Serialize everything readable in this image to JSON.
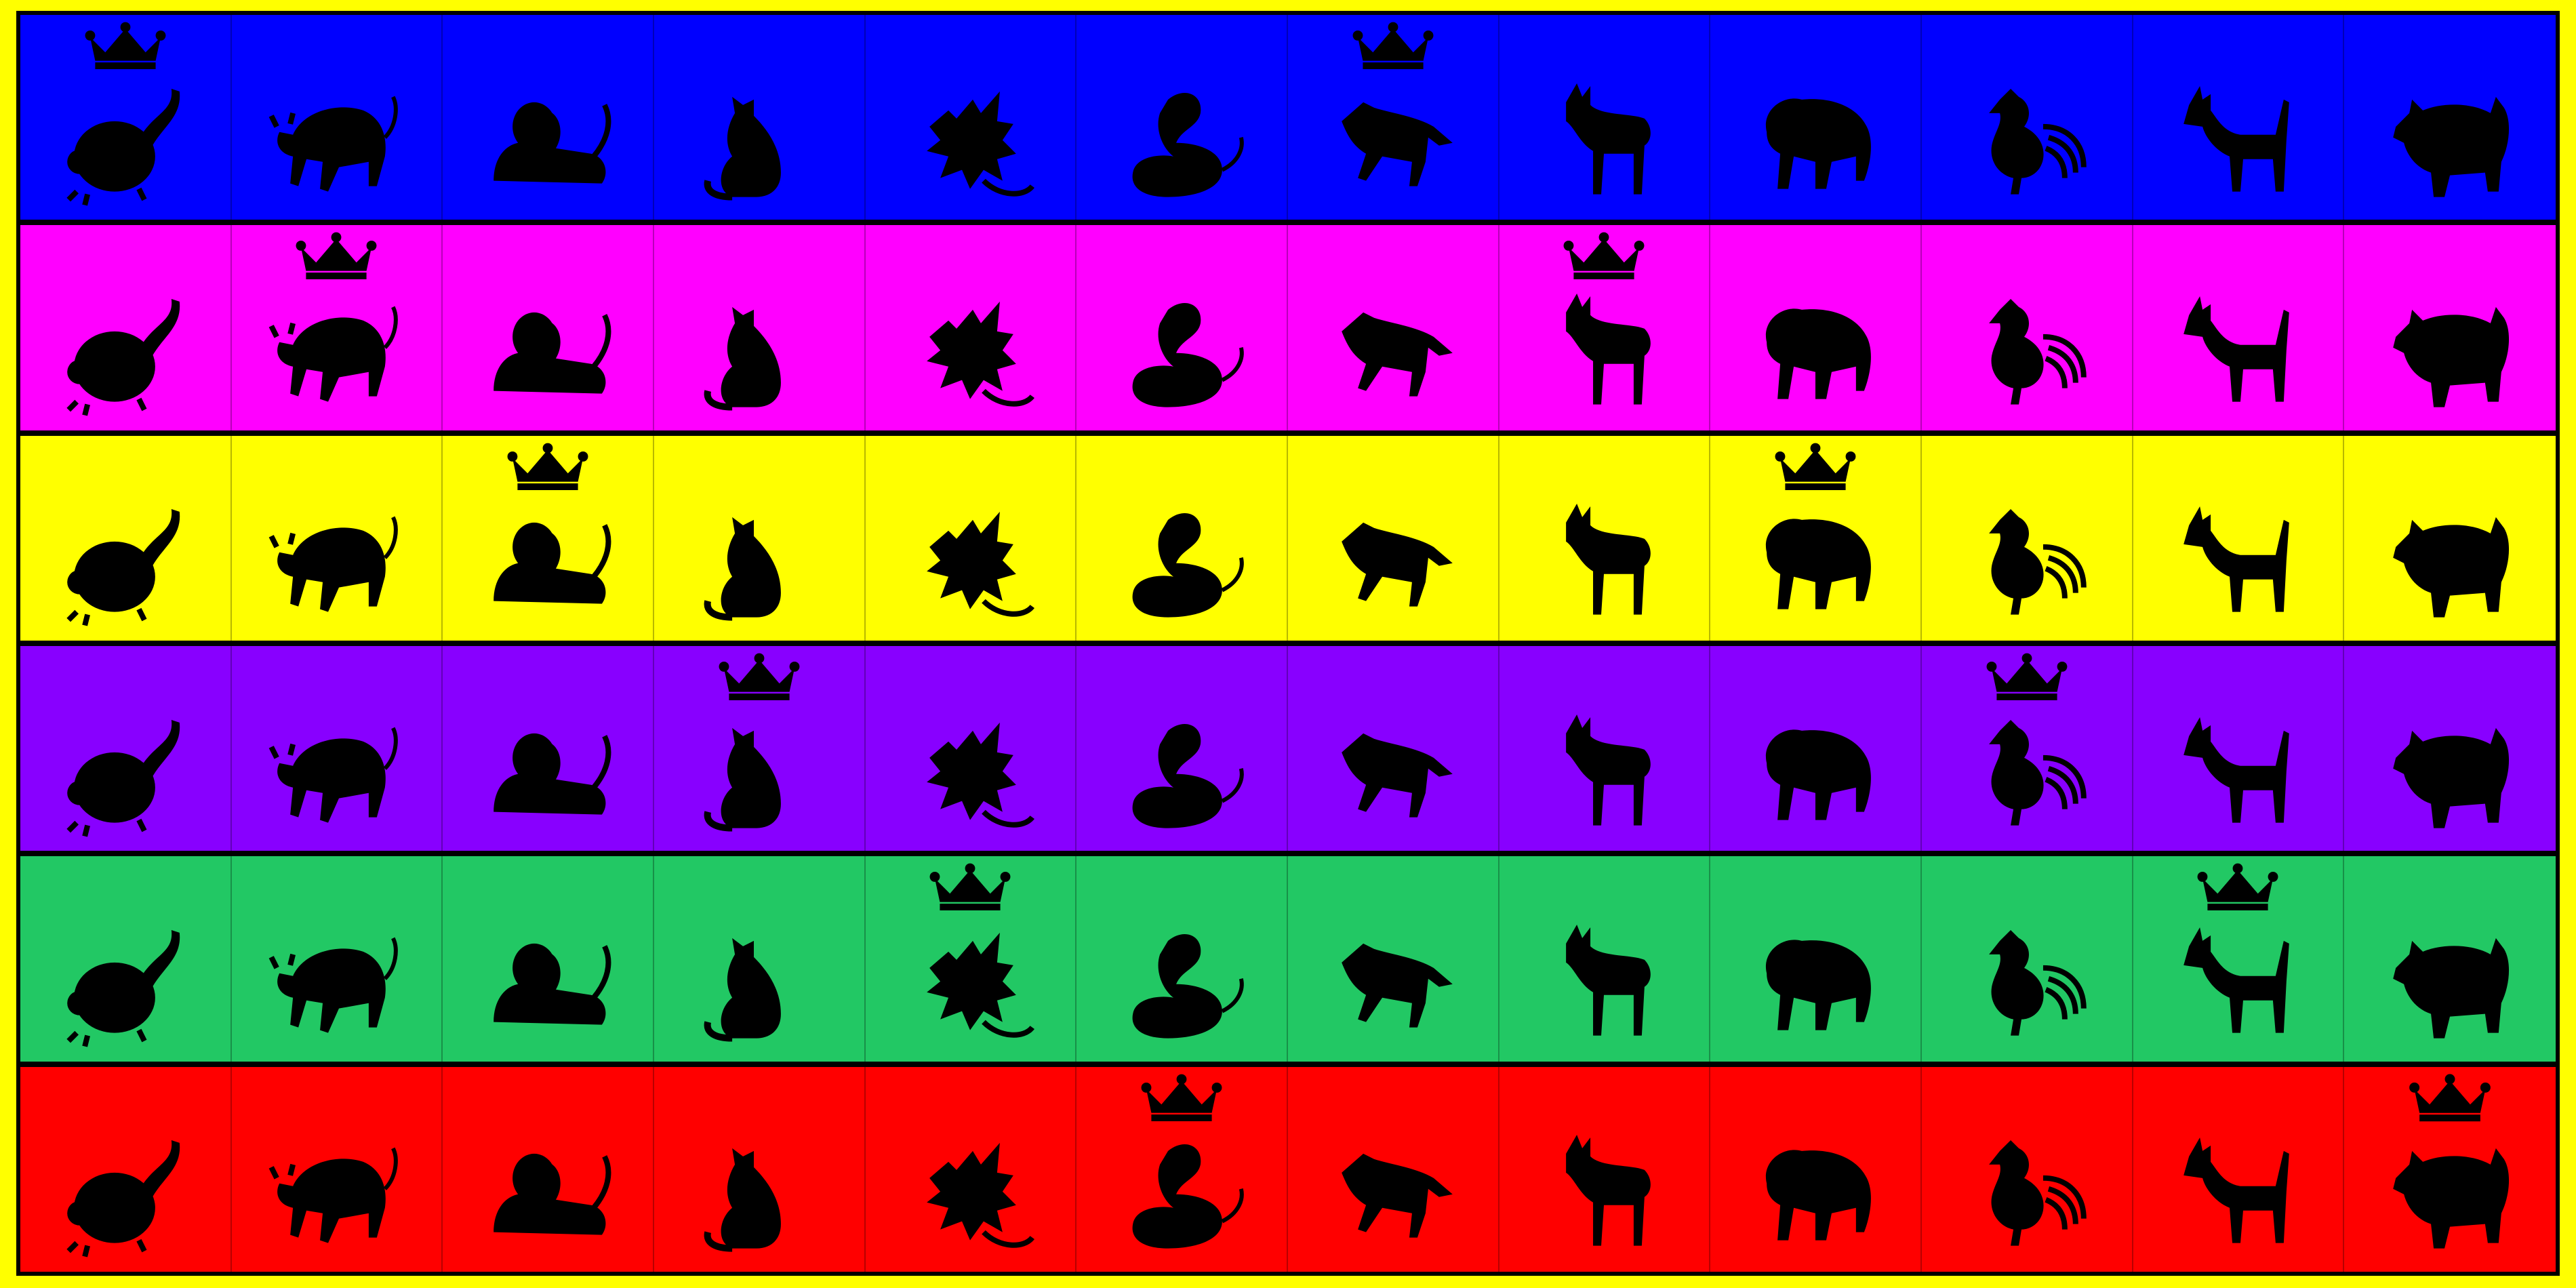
{
  "board": {
    "animals": [
      "rat",
      "ox",
      "lion",
      "cat",
      "dragon",
      "snake",
      "horse",
      "goat",
      "monkey",
      "rooster",
      "dog",
      "pig"
    ],
    "rows": [
      {
        "color": "#0000ff",
        "crowns": [
          0,
          6
        ]
      },
      {
        "color": "#ff00ff",
        "crowns": [
          1,
          7
        ]
      },
      {
        "color": "#ffff00",
        "crowns": [
          2,
          8
        ]
      },
      {
        "color": "#8800ff",
        "crowns": [
          3,
          9
        ]
      },
      {
        "color": "#22c864",
        "crowns": [
          4,
          10
        ]
      },
      {
        "color": "#ff0000",
        "crowns": [
          5,
          11
        ]
      }
    ],
    "silhouette_color": "#000000",
    "border_color": "#ffff00"
  }
}
